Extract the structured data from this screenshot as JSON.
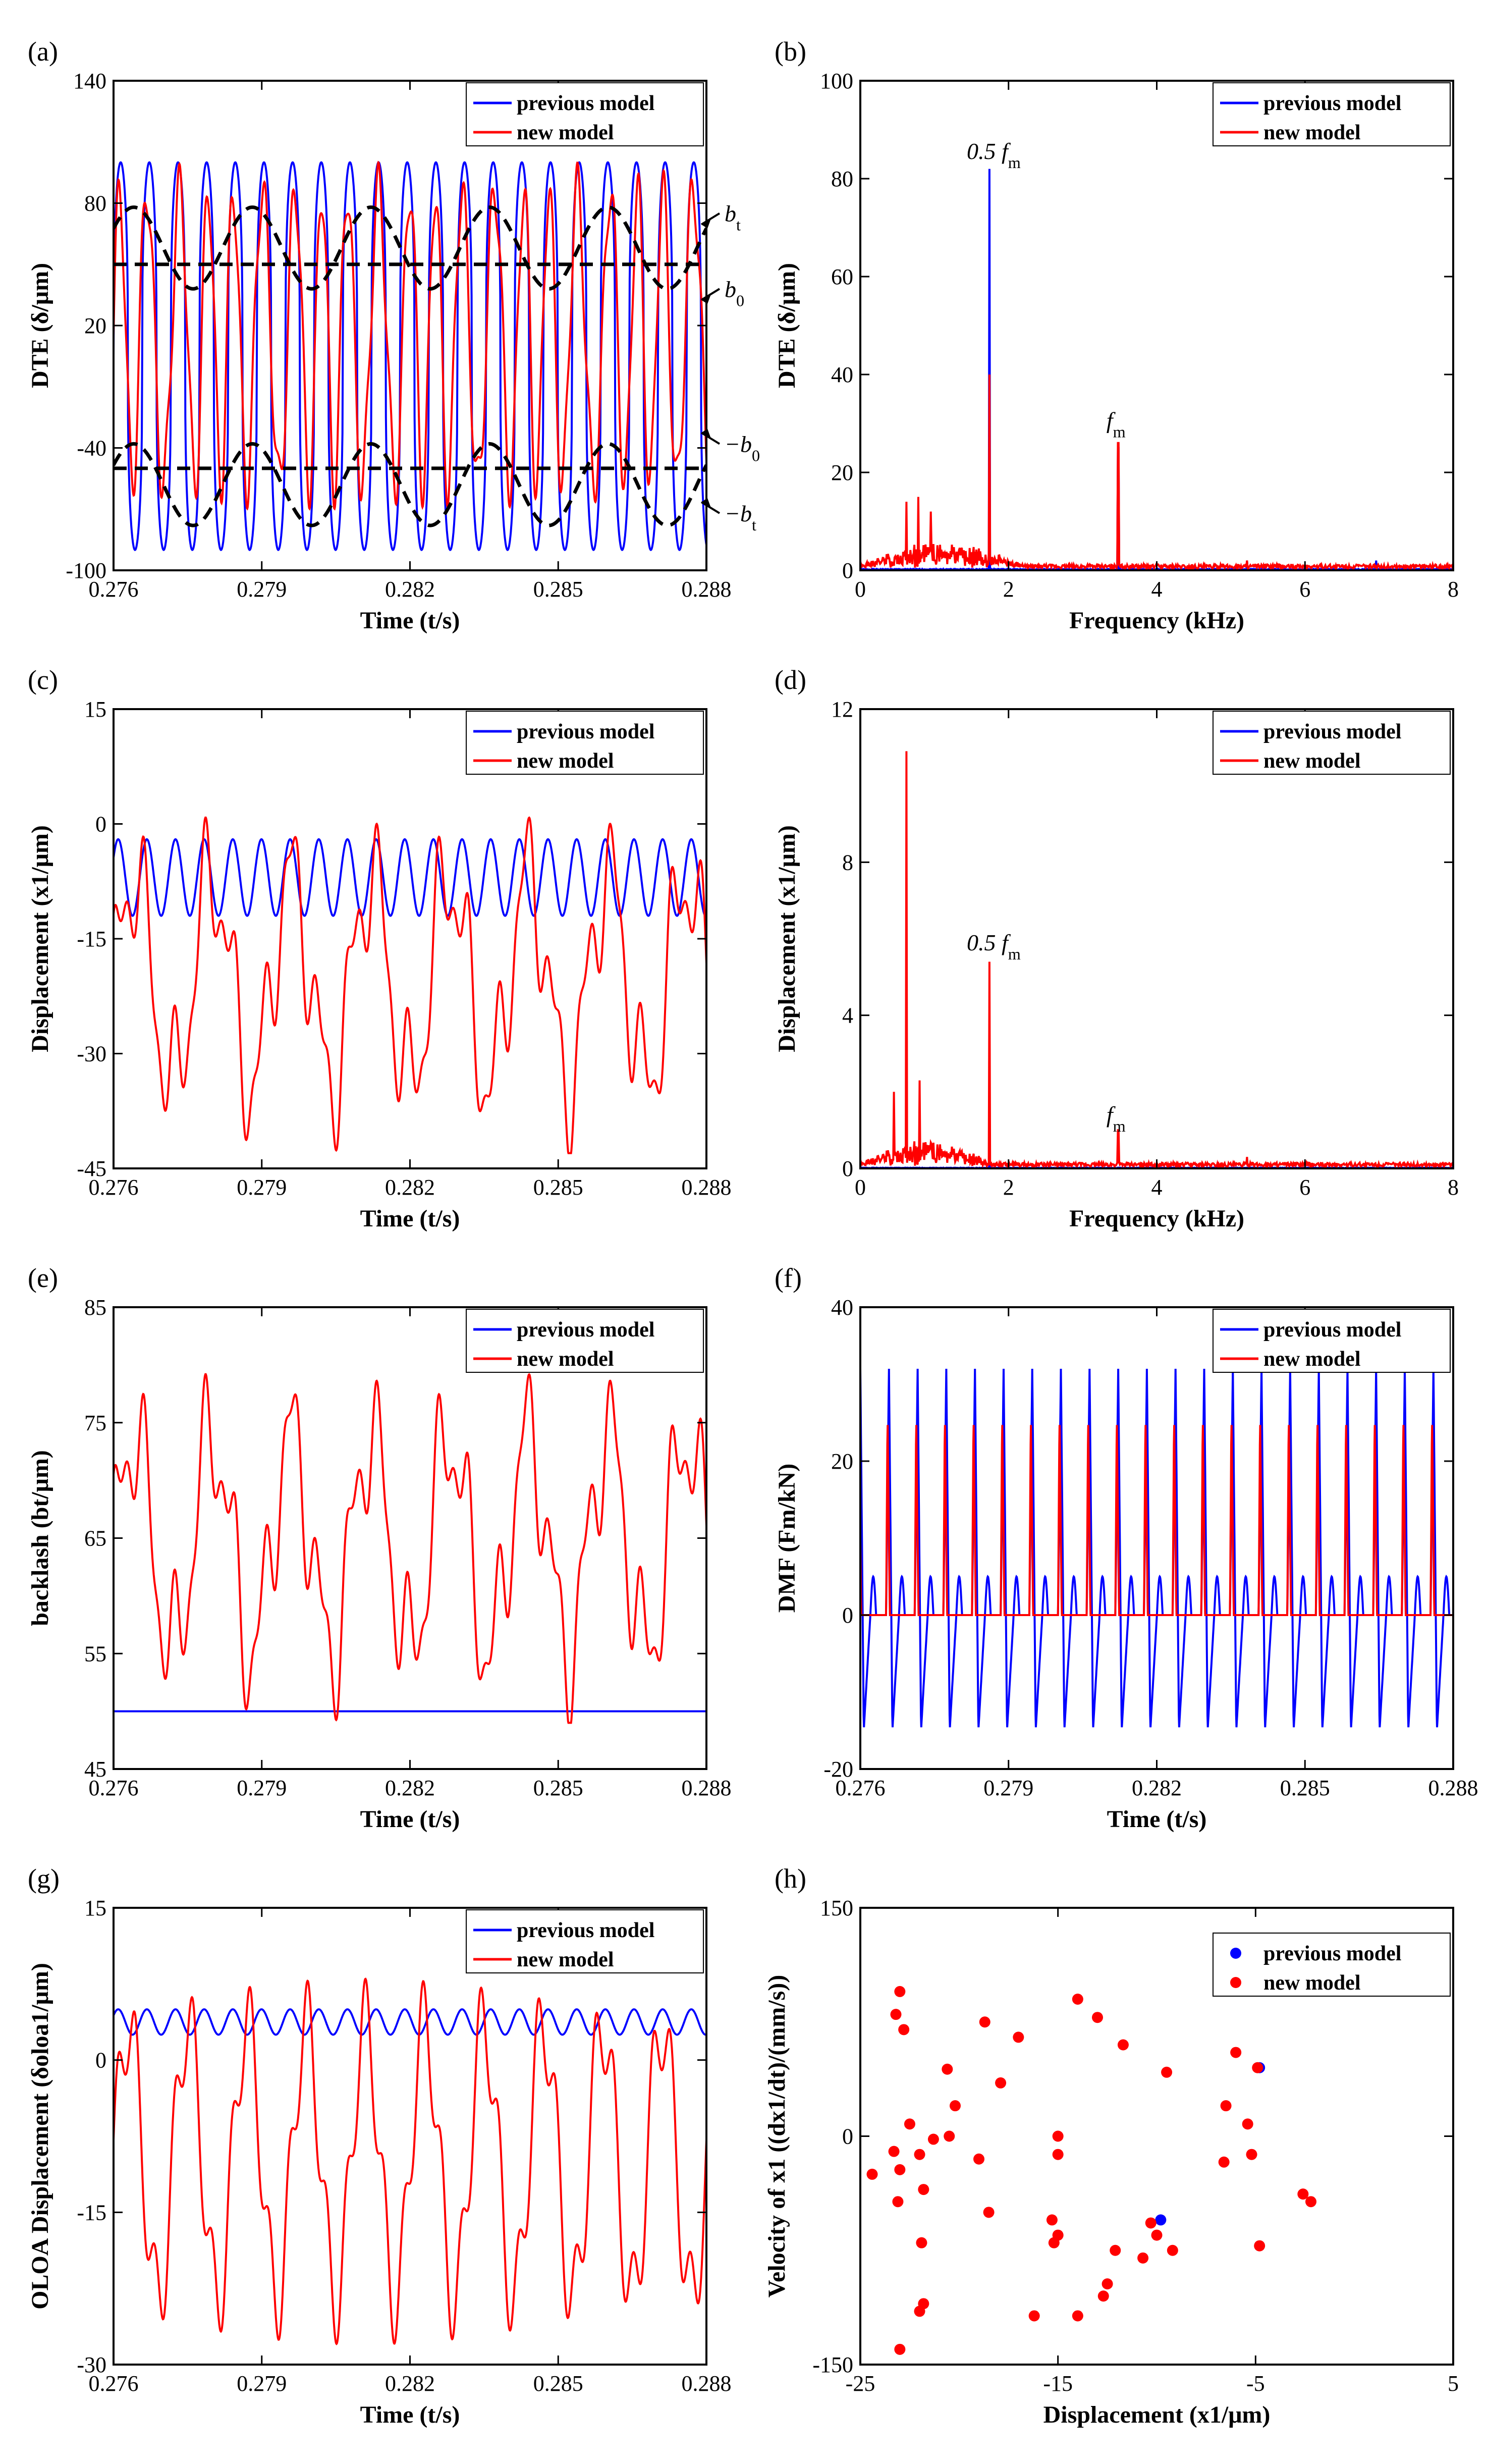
{
  "colors": {
    "previous": "#0000ff",
    "new": "#ff0000",
    "threshold": "#000000"
  },
  "legend": {
    "previous": "previous model",
    "new": "new model"
  },
  "chart_data": [
    {
      "id": "a",
      "panel_label": "(a)",
      "type": "line",
      "xlabel": "Time (t/s)",
      "ylabel": "DTE (δ/μm)",
      "xlim": [
        0.276,
        0.288
      ],
      "ylim": [
        -100,
        140
      ],
      "xticks": [
        "0.276",
        "0.279",
        "0.282",
        "0.285",
        "0.288"
      ],
      "yticks": [
        "-100",
        "-40",
        "20",
        "80",
        "140"
      ],
      "annotations": [
        {
          "text": "b_t",
          "x": 0.2882,
          "y": 75
        },
        {
          "text": "b_0",
          "x": 0.2882,
          "y": 38
        },
        {
          "text": "−b_0",
          "x": 0.2882,
          "y": -38
        },
        {
          "text": "−b_t",
          "x": 0.2882,
          "y": -72
        }
      ],
      "series": [
        {
          "name": "previous model",
          "kind": "square_osc",
          "period": 0.00058,
          "min": -90,
          "max": 100,
          "phase": 0.0
        },
        {
          "name": "new model",
          "kind": "irregular",
          "period": 0.00058,
          "min": -70,
          "max": 100,
          "seed": 3
        },
        {
          "name": "b0",
          "kind": "const",
          "value": 50,
          "dashed": true
        },
        {
          "name": "-b0",
          "kind": "const",
          "value": -50,
          "dashed": true
        },
        {
          "name": "bt",
          "kind": "dash_wave",
          "center": 58,
          "amp": 20,
          "period": 0.0024
        },
        {
          "name": "-bt",
          "kind": "dash_wave",
          "center": -58,
          "amp": 20,
          "period": 0.0024
        }
      ]
    },
    {
      "id": "b",
      "panel_label": "(b)",
      "type": "line",
      "xlabel": "Frequency (kHz)",
      "ylabel": "DTE (δ/μm)",
      "xlim": [
        0,
        8
      ],
      "ylim": [
        0,
        100
      ],
      "xticks": [
        "0",
        "2",
        "4",
        "6",
        "8"
      ],
      "yticks": [
        "0",
        "20",
        "40",
        "60",
        "80",
        "100"
      ],
      "annotations": [
        {
          "text": "0.5 f_m",
          "x": 1.8,
          "y": 84
        },
        {
          "text": "f_m",
          "x": 3.45,
          "y": 29
        }
      ],
      "series": [
        {
          "name": "previous model",
          "kind": "spectrum",
          "peaks": [
            [
              1.74,
              82
            ],
            [
              3.48,
              25
            ],
            [
              5.22,
              2
            ],
            [
              6.96,
              2
            ]
          ],
          "floor": 0.3
        },
        {
          "name": "new model",
          "kind": "spectrum",
          "peaks": [
            [
              0.62,
              14
            ],
            [
              0.78,
              15
            ],
            [
              0.95,
              12
            ],
            [
              1.74,
              40
            ],
            [
              3.48,
              26
            ],
            [
              5.22,
              2
            ]
          ],
          "floor": 1.2,
          "noise_to": 2.2
        }
      ]
    },
    {
      "id": "c",
      "panel_label": "(c)",
      "type": "line",
      "xlabel": "Time (t/s)",
      "ylabel": "Displacement (x1/μm)",
      "xlim": [
        0.276,
        0.288
      ],
      "ylim": [
        -45,
        15
      ],
      "xticks": [
        "0.276",
        "0.279",
        "0.282",
        "0.285",
        "0.288"
      ],
      "yticks": [
        "-45",
        "-30",
        "-15",
        "0",
        "15"
      ],
      "series": [
        {
          "name": "previous model",
          "kind": "sine",
          "period": 0.00058,
          "min": -12,
          "max": -2
        },
        {
          "name": "new model",
          "kind": "slow",
          "min": -43,
          "max": 2,
          "period": 0.0016,
          "seed": 5
        }
      ]
    },
    {
      "id": "d",
      "panel_label": "(d)",
      "type": "line",
      "xlabel": "Frequency (kHz)",
      "ylabel": "Displacement (x1/μm)",
      "xlim": [
        0,
        8
      ],
      "ylim": [
        0,
        12
      ],
      "xticks": [
        "0",
        "2",
        "4",
        "6",
        "8"
      ],
      "yticks": [
        "0",
        "4",
        "8",
        "12"
      ],
      "annotations": [
        {
          "text": "0.5 f_m",
          "x": 1.8,
          "y": 5.7
        },
        {
          "text": "f_m",
          "x": 3.45,
          "y": 1.2
        }
      ],
      "series": [
        {
          "name": "previous model",
          "kind": "spectrum",
          "peaks": [
            [
              1.74,
              0.1
            ]
          ],
          "floor": 0.02
        },
        {
          "name": "new model",
          "kind": "spectrum",
          "peaks": [
            [
              0.62,
              10.9
            ],
            [
              0.45,
              2
            ],
            [
              0.8,
              2.3
            ],
            [
              1.74,
              5.4
            ],
            [
              3.48,
              1
            ],
            [
              5.22,
              0.3
            ]
          ],
          "floor": 0.15,
          "noise_to": 1.8
        }
      ]
    },
    {
      "id": "e",
      "panel_label": "(e)",
      "type": "line",
      "xlabel": "Time (t/s)",
      "ylabel": "backlash (bt/μm)",
      "xlim": [
        0.276,
        0.288
      ],
      "ylim": [
        45,
        85
      ],
      "xticks": [
        "0.276",
        "0.279",
        "0.282",
        "0.285",
        "0.288"
      ],
      "yticks": [
        "45",
        "55",
        "65",
        "75",
        "85"
      ],
      "series": [
        {
          "name": "previous model",
          "kind": "const",
          "value": 50
        },
        {
          "name": "new model",
          "kind": "slow",
          "min": 49,
          "max": 80,
          "period": 0.0016,
          "seed": 7
        }
      ]
    },
    {
      "id": "f",
      "panel_label": "(f)",
      "type": "line",
      "xlabel": "Time (t/s)",
      "ylabel": "DMF (Fm/kN)",
      "xlim": [
        0.276,
        0.288
      ],
      "ylim": [
        -20,
        40
      ],
      "xticks": [
        "0.276",
        "0.279",
        "0.282",
        "0.285",
        "0.288"
      ],
      "yticks": [
        "-20",
        "0",
        "20",
        "40"
      ],
      "series": [
        {
          "name": "previous model",
          "kind": "spike",
          "period": 0.00058,
          "min": -15,
          "max": 32
        },
        {
          "name": "new model",
          "kind": "spike_pos",
          "period": 0.00058,
          "min": 0,
          "max": 26
        }
      ]
    },
    {
      "id": "g",
      "panel_label": "(g)",
      "type": "line",
      "xlabel": "Time (t/s)",
      "ylabel": "OLOA Displacement (δoloa1/μm)",
      "xlim": [
        0.276,
        0.288
      ],
      "ylim": [
        -30,
        15
      ],
      "xticks": [
        "0.276",
        "0.279",
        "0.282",
        "0.285",
        "0.288"
      ],
      "yticks": [
        "-30",
        "-15",
        "0",
        "15"
      ],
      "series": [
        {
          "name": "previous model",
          "kind": "sine",
          "period": 0.00058,
          "min": 2.5,
          "max": 5
        },
        {
          "name": "new model",
          "kind": "slow2",
          "min": -28,
          "max": 8,
          "period": 0.0012,
          "seed": 11
        }
      ]
    },
    {
      "id": "h",
      "panel_label": "(h)",
      "type": "scatter",
      "xlabel": "Displacement (x1/μm)",
      "ylabel": "Velocity of x1 ((dx1/dt)/(mm/s))",
      "xlim": [
        -25,
        5
      ],
      "ylim": [
        -150,
        150
      ],
      "xticks": [
        "-25",
        "-15",
        "-5",
        "5"
      ],
      "yticks": [
        "-150",
        "0",
        "150"
      ],
      "series": [
        {
          "name": "previous model",
          "points": [
            [
              -4.8,
              45
            ],
            [
              -9.8,
              -55
            ]
          ]
        },
        {
          "name": "new model",
          "points": [
            [
              -23,
              95
            ],
            [
              -22.8,
              70
            ],
            [
              -23.2,
              80
            ],
            [
              -18.7,
              75
            ],
            [
              -17,
              65
            ],
            [
              -14,
              90
            ],
            [
              -13,
              78
            ],
            [
              -11.7,
              60
            ],
            [
              -9.5,
              42
            ],
            [
              -6,
              55
            ],
            [
              -6.5,
              20
            ],
            [
              -5.4,
              8
            ],
            [
              -4.9,
              45
            ],
            [
              -5.2,
              -12
            ],
            [
              -6.6,
              -17
            ],
            [
              -2.6,
              -38
            ],
            [
              -2.2,
              -43
            ],
            [
              -4.8,
              -72
            ],
            [
              -9.2,
              -75
            ],
            [
              -10,
              -65
            ],
            [
              -10.3,
              -57
            ],
            [
              -10.7,
              -80
            ],
            [
              -12.1,
              -75
            ],
            [
              -12.5,
              -97
            ],
            [
              -12.7,
              -105
            ],
            [
              -14,
              -118
            ],
            [
              -15,
              -65
            ],
            [
              -15.2,
              -70
            ],
            [
              -15.3,
              -55
            ],
            [
              -15,
              0
            ],
            [
              -15,
              -12
            ],
            [
              -16.2,
              -118
            ],
            [
              -18.5,
              -50
            ],
            [
              -19,
              -15
            ],
            [
              -17.9,
              35
            ],
            [
              -20.2,
              20
            ],
            [
              -20.6,
              44
            ],
            [
              -20.5,
              0
            ],
            [
              -21.3,
              -2
            ],
            [
              -22,
              -12
            ],
            [
              -22.5,
              8
            ],
            [
              -23,
              -22
            ],
            [
              -21.8,
              -35
            ],
            [
              -23.3,
              -10
            ],
            [
              -23.1,
              -43
            ],
            [
              -24.4,
              -25
            ],
            [
              -21.9,
              -70
            ],
            [
              -21.8,
              -110
            ],
            [
              -22,
              -115
            ],
            [
              -23,
              -140
            ]
          ]
        }
      ]
    }
  ]
}
